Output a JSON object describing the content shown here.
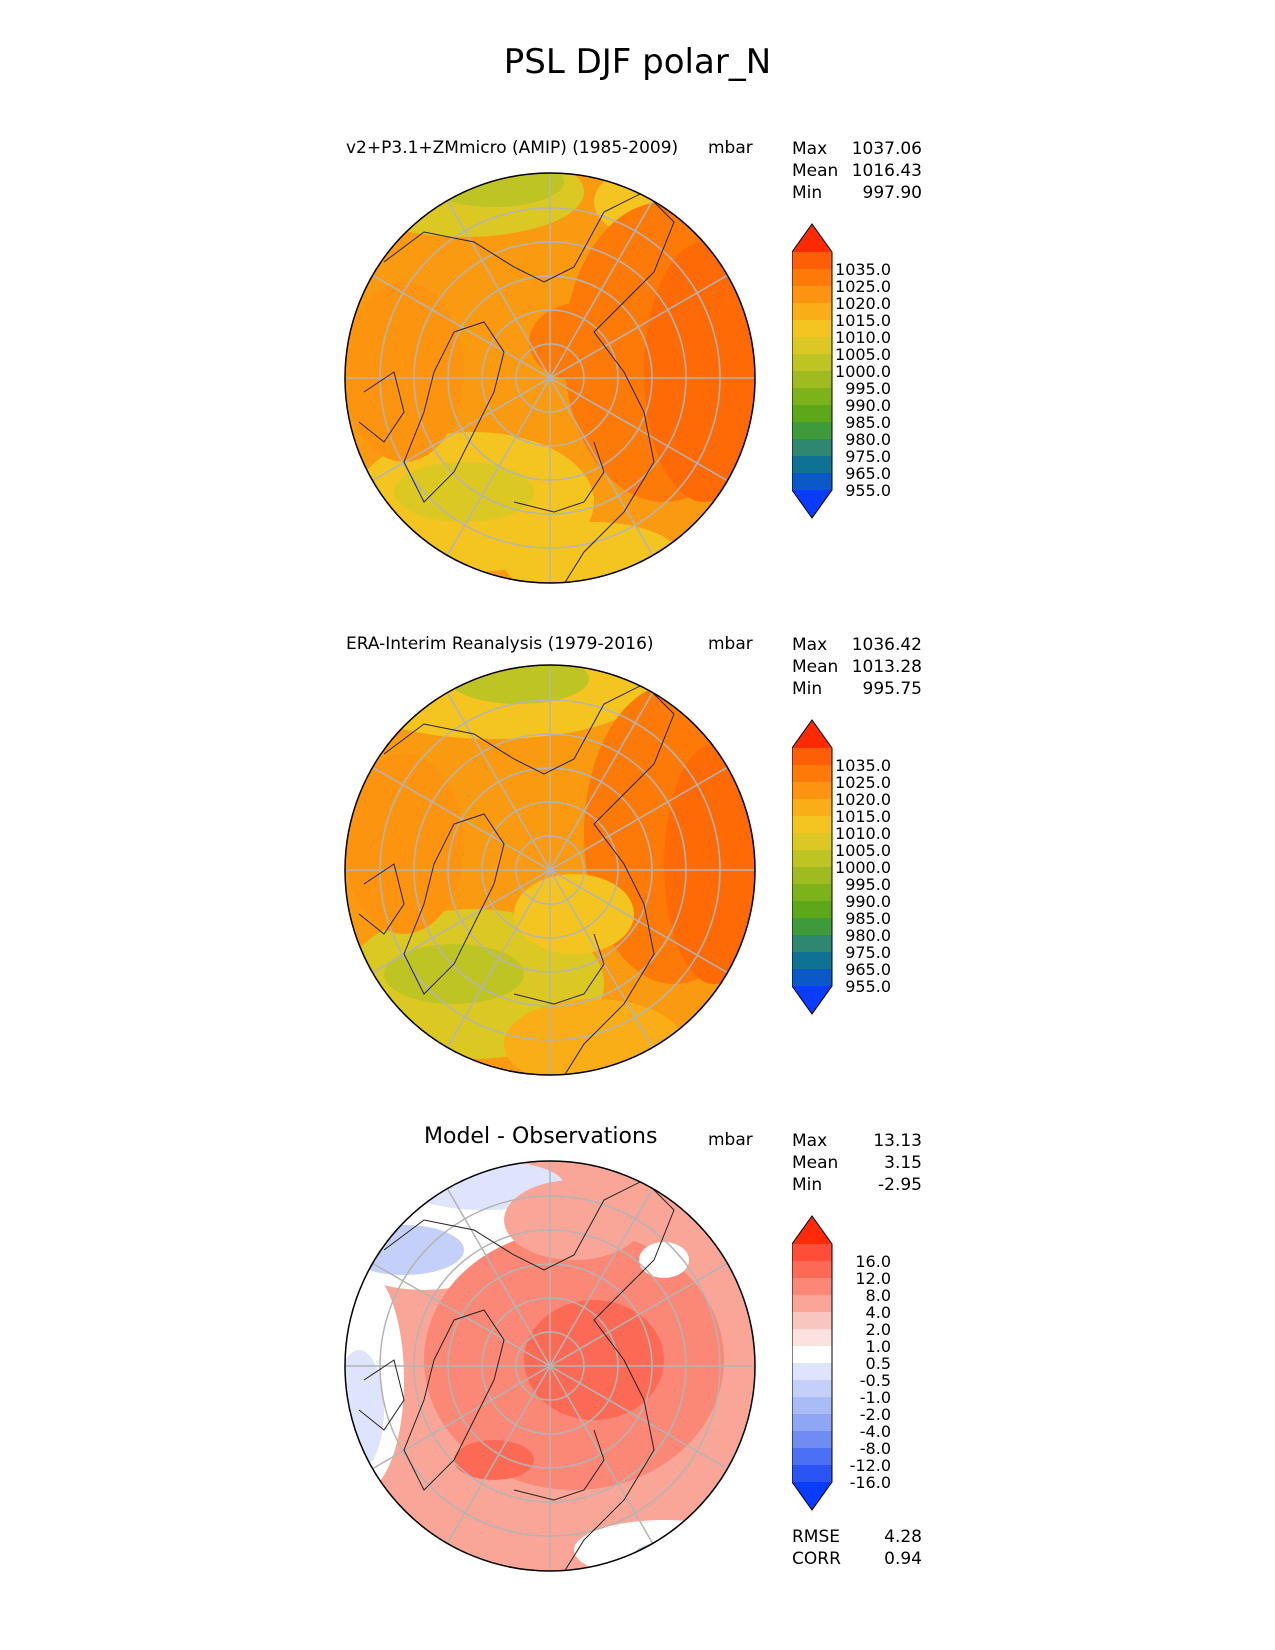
{
  "title": "PSL DJF polar_N",
  "panels": [
    {
      "title": "v2+P3.1+ZMmicro (AMIP) (1985-2009)",
      "units": "mbar",
      "stats": [
        {
          "label": "Max",
          "value": "1037.06"
        },
        {
          "label": "Mean",
          "value": "1016.43"
        },
        {
          "label": "Min",
          "value": "997.90"
        }
      ],
      "colorbar": {
        "labels": [
          "1035.0",
          "1025.0",
          "1020.0",
          "1015.0",
          "1010.0",
          "1005.0",
          "1000.0",
          "995.0",
          "990.0",
          "985.0",
          "980.0",
          "975.0",
          "965.0",
          "955.0"
        ],
        "colors": [
          "#ff2a00",
          "#fe5e06",
          "#fd7a08",
          "#fd9410",
          "#f9ad16",
          "#f4c520",
          "#dcc822",
          "#bec424",
          "#9fbb20",
          "#7db21a",
          "#5ca818",
          "#3e9a3a",
          "#2f8770",
          "#0f7295",
          "#0b58c8",
          "#0a3cff"
        ]
      }
    },
    {
      "title": "ERA-Interim Reanalysis (1979-2016)",
      "units": "mbar",
      "stats": [
        {
          "label": "Max",
          "value": "1036.42"
        },
        {
          "label": "Mean",
          "value": "1013.28"
        },
        {
          "label": "Min",
          "value": "995.75"
        }
      ],
      "colorbar": {
        "labels": [
          "1035.0",
          "1025.0",
          "1020.0",
          "1015.0",
          "1010.0",
          "1005.0",
          "1000.0",
          "995.0",
          "990.0",
          "985.0",
          "980.0",
          "975.0",
          "965.0",
          "955.0"
        ],
        "colors": [
          "#ff2a00",
          "#fe5e06",
          "#fd7a08",
          "#fd9410",
          "#f9ad16",
          "#f4c520",
          "#dcc822",
          "#bec424",
          "#9fbb20",
          "#7db21a",
          "#5ca818",
          "#3e9a3a",
          "#2f8770",
          "#0f7295",
          "#0b58c8",
          "#0a3cff"
        ]
      }
    },
    {
      "title": "Model - Observations",
      "units": "mbar",
      "stats": [
        {
          "label": "Max",
          "value": "13.13"
        },
        {
          "label": "Mean",
          "value": "3.15"
        },
        {
          "label": "Min",
          "value": "-2.95"
        }
      ],
      "colorbar": {
        "labels": [
          "16.0",
          "12.0",
          "8.0",
          "4.0",
          "2.0",
          "1.0",
          "0.5",
          "-0.5",
          "-1.0",
          "-2.0",
          "-4.0",
          "-8.0",
          "-12.0",
          "-16.0"
        ],
        "colors": [
          "#ff2a0a",
          "#fe4e3a",
          "#fc6a56",
          "#fb8776",
          "#f9a698",
          "#f8c6be",
          "#fbe2de",
          "#ffffff",
          "#dde4fb",
          "#c4d0f8",
          "#aabcf6",
          "#8ea6f4",
          "#6e8cf2",
          "#4c70f3",
          "#2b54f5",
          "#0a3cff"
        ]
      },
      "footer": [
        {
          "label": "RMSE",
          "value": "4.28"
        },
        {
          "label": "CORR",
          "value": "0.94"
        }
      ]
    }
  ]
}
